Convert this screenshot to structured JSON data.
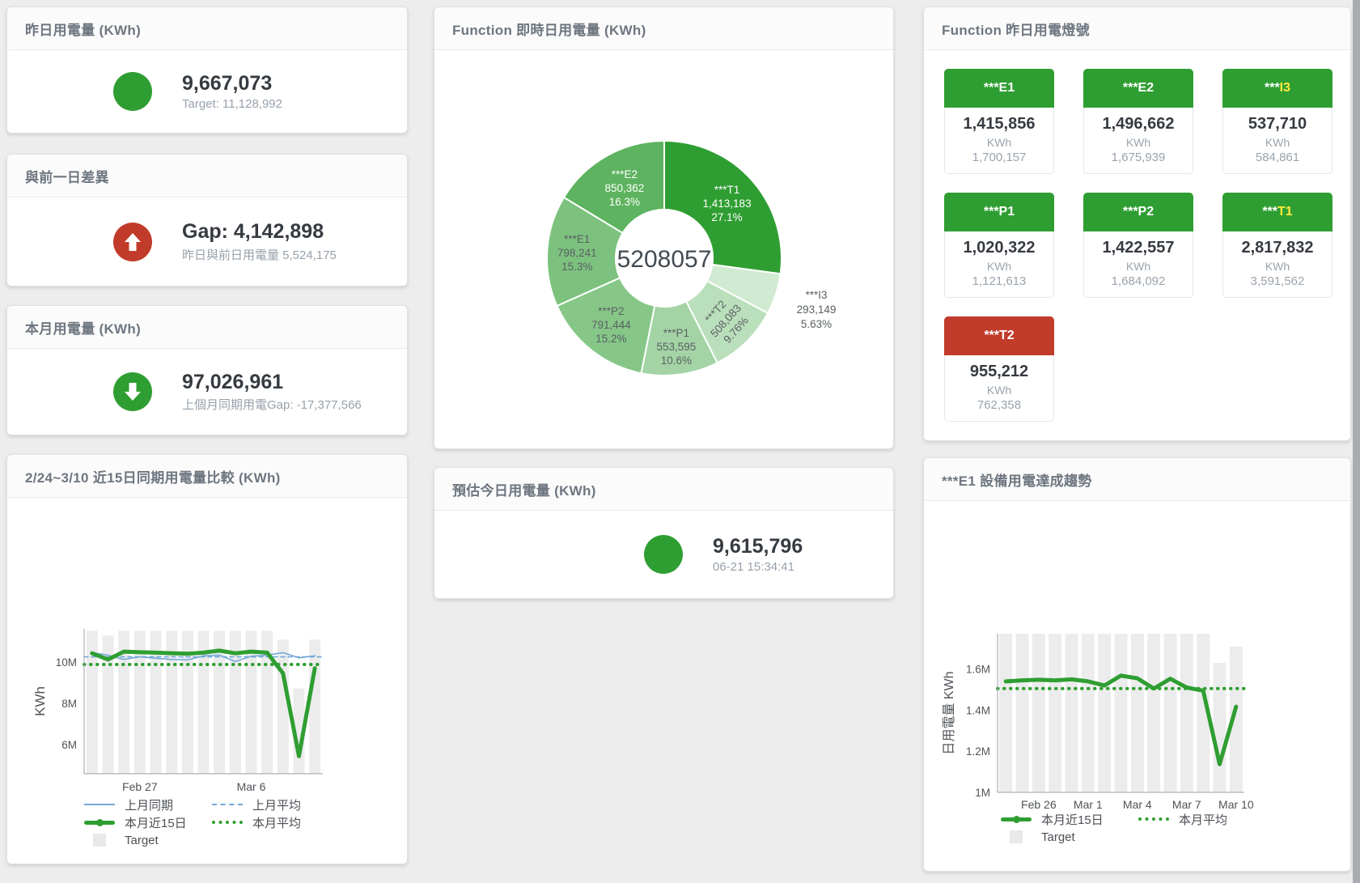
{
  "colors": {
    "green": "#2f9e32",
    "red": "#c13b2a",
    "yellow": "#ffeb3b",
    "blue": "#74a9d8",
    "gray_bar": "#ececec",
    "text_dark": "#363b41",
    "text_gray": "#98a1ab",
    "title": "#6e7680"
  },
  "cards": {
    "yesterday": {
      "title": "昨日用電量 (KWh)",
      "value": "9,667,073",
      "subtitle": "Target: 11,128,992"
    },
    "gap_prev_day": {
      "title": "與前一日差異",
      "value": "Gap: 4,142,898",
      "subtitle": "昨日與前日用電量 5,524,175"
    },
    "month": {
      "title": "本月用電量 (KWh)",
      "value": "97,026,961",
      "subtitle": "上個月同期用電Gap: -17,377,566"
    },
    "compare15": {
      "title": "2/24~3/10 近15日同期用電量比較 (KWh)"
    },
    "realtime_donut": {
      "title": "Function 即時日用電量 (KWh)",
      "center_total": "5208057"
    },
    "estimate_today": {
      "title": "預估今日用電量 (KWh)",
      "value": "9,615,796",
      "subtitle": "06-21 15:34:41"
    },
    "signal": {
      "title": "Function 昨日用電燈號"
    },
    "e1_trend": {
      "title": "***E1 設備用電達成趨勢"
    }
  },
  "signal_tiles": [
    {
      "stars": "***",
      "code": "E1",
      "value": "1,415,856",
      "unit": "KWh",
      "target": "1,700,157",
      "header": "green",
      "code_color": "white"
    },
    {
      "stars": "***",
      "code": "E2",
      "value": "1,496,662",
      "unit": "KWh",
      "target": "1,675,939",
      "header": "green",
      "code_color": "white"
    },
    {
      "stars": "***",
      "code": "I3",
      "value": "537,710",
      "unit": "KWh",
      "target": "584,861",
      "header": "green",
      "code_color": "yellow"
    },
    {
      "stars": "***",
      "code": "P1",
      "value": "1,020,322",
      "unit": "KWh",
      "target": "1,121,613",
      "header": "green",
      "code_color": "white"
    },
    {
      "stars": "***",
      "code": "P2",
      "value": "1,422,557",
      "unit": "KWh",
      "target": "1,684,092",
      "header": "green",
      "code_color": "white"
    },
    {
      "stars": "***",
      "code": "T1",
      "value": "2,817,832",
      "unit": "KWh",
      "target": "3,591,562",
      "header": "green",
      "code_color": "yellow"
    },
    {
      "stars": "***",
      "code": "T2",
      "value": "955,212",
      "unit": "KWh",
      "target": "762,358",
      "header": "red",
      "code_color": "white"
    }
  ],
  "chart_data": [
    {
      "id": "donut",
      "type": "pie",
      "title": "Function 即時日用電量 (KWh)",
      "center_label": "5208057",
      "unit": "KWh",
      "segments": [
        {
          "name": "***T1",
          "value": 1413183,
          "pct": "27.1%"
        },
        {
          "name": "***I3",
          "value": 293149,
          "pct": "5.63%"
        },
        {
          "name": "***T2",
          "value": 508083,
          "pct": "9.76%"
        },
        {
          "name": "***P1",
          "value": 553595,
          "pct": "10.6%"
        },
        {
          "name": "***P2",
          "value": 791444,
          "pct": "15.2%"
        },
        {
          "name": "***E1",
          "value": 798241,
          "pct": "15.3%"
        },
        {
          "name": "***E2",
          "value": 850362,
          "pct": "16.3%"
        }
      ]
    },
    {
      "id": "compare",
      "type": "line+bar",
      "title": "2/24~3/10 近15日同期用電量比較 (KWh)",
      "ylabel": "KWh",
      "unit": "M KWh",
      "ylim": [
        4.6,
        11.6
      ],
      "yticks": [
        {
          "label": "10M",
          "v": 10
        },
        {
          "label": "8M",
          "v": 8
        },
        {
          "label": "6M",
          "v": 6
        }
      ],
      "xticks": [
        {
          "label": "Feb 27",
          "i": 3
        },
        {
          "label": "Mar 6",
          "i": 10
        }
      ],
      "series": [
        {
          "name": "上月同期",
          "type": "line",
          "style": "blue-line",
          "values": [
            10.45,
            10.33,
            10.12,
            10.25,
            10.18,
            10.12,
            10.1,
            10.3,
            10.33,
            10.02,
            10.28,
            10.33,
            10.45,
            10.2,
            10.3
          ]
        },
        {
          "name": "上月平均",
          "type": "line",
          "style": "blue-dash",
          "constant": 10.25
        },
        {
          "name": "本月近15日",
          "type": "line",
          "style": "green-line",
          "values": [
            10.42,
            10.12,
            10.5,
            10.47,
            10.45,
            10.42,
            10.4,
            10.45,
            10.55,
            10.42,
            10.5,
            10.45,
            9.45,
            5.45,
            9.7
          ]
        },
        {
          "name": "本月平均",
          "type": "line",
          "style": "green-dot",
          "constant": 9.88
        },
        {
          "name": "Target",
          "type": "bar",
          "style": "gray-bar",
          "values": [
            11.5,
            11.28,
            11.5,
            11.5,
            11.5,
            11.5,
            11.5,
            11.5,
            11.5,
            11.5,
            11.5,
            11.5,
            11.08,
            8.72,
            11.08
          ]
        }
      ],
      "legend": [
        {
          "label": "上月同期",
          "style": "blue-line"
        },
        {
          "label": "上月平均",
          "style": "blue-dash"
        },
        {
          "label": "本月近15日",
          "style": "green-line"
        },
        {
          "label": "本月平均",
          "style": "green-dot"
        },
        {
          "label": "Target",
          "style": "gray-box"
        }
      ]
    },
    {
      "id": "trend",
      "type": "line+bar",
      "title": "***E1 設備用電達成趨勢",
      "ylabel": "日用電量 KWh",
      "unit": "M KWh",
      "ylim": [
        1.0,
        1.772
      ],
      "yticks": [
        {
          "label": "1.6M",
          "v": 1.6
        },
        {
          "label": "1.4M",
          "v": 1.4
        },
        {
          "label": "1.2M",
          "v": 1.2
        },
        {
          "label": "1M",
          "v": 1
        }
      ],
      "xticks": [
        {
          "label": "Feb 26",
          "i": 2
        },
        {
          "label": "Mar 1",
          "i": 5
        },
        {
          "label": "Mar 4",
          "i": 8
        },
        {
          "label": "Mar 7",
          "i": 11
        },
        {
          "label": "Mar 10",
          "i": 14
        }
      ],
      "series": [
        {
          "name": "本月近15日",
          "type": "line",
          "style": "green-line",
          "values": [
            1.54,
            1.545,
            1.548,
            1.545,
            1.55,
            1.54,
            1.52,
            1.568,
            1.555,
            1.505,
            1.553,
            1.51,
            1.495,
            1.137,
            1.417
          ]
        },
        {
          "name": "本月平均",
          "type": "line",
          "style": "green-dot",
          "constant": 1.505
        },
        {
          "name": "Target",
          "type": "bar",
          "style": "gray-bar",
          "values": [
            1.772,
            1.772,
            1.772,
            1.772,
            1.772,
            1.772,
            1.772,
            1.772,
            1.772,
            1.772,
            1.772,
            1.772,
            1.772,
            1.63,
            1.71
          ]
        }
      ],
      "legend": [
        {
          "label": "本月近15日",
          "style": "green-line"
        },
        {
          "label": "本月平均",
          "style": "green-dot"
        },
        {
          "label": "Target",
          "style": "gray-box"
        }
      ]
    }
  ]
}
